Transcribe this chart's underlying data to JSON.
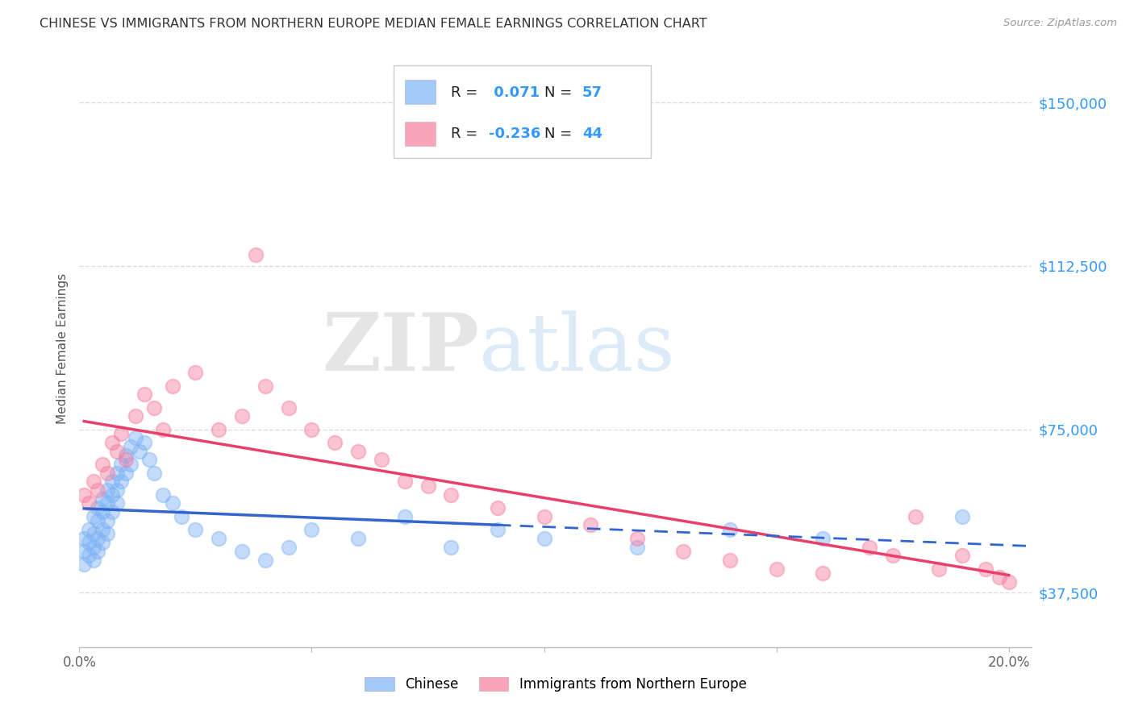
{
  "title": "CHINESE VS IMMIGRANTS FROM NORTHERN EUROPE MEDIAN FEMALE EARNINGS CORRELATION CHART",
  "source": "Source: ZipAtlas.com",
  "ylabel": "Median Female Earnings",
  "yticks": [
    37500,
    75000,
    112500,
    150000
  ],
  "ytick_labels": [
    "$37,500",
    "$75,000",
    "$112,500",
    "$150,000"
  ],
  "xlim": [
    0.0,
    0.205
  ],
  "ylim": [
    25000,
    162000
  ],
  "legend_chinese_R": "0.071",
  "legend_chinese_N": "57",
  "legend_northern_R": "-0.236",
  "legend_northern_N": "44",
  "chinese_color": "#7EB3F5",
  "northern_color": "#F87EA0",
  "chinese_line_color": "#3366CC",
  "northern_line_color": "#E8406A",
  "watermark_zip": "ZIP",
  "watermark_atlas": "atlas",
  "chinese_x": [
    0.001,
    0.001,
    0.001,
    0.002,
    0.002,
    0.002,
    0.003,
    0.003,
    0.003,
    0.003,
    0.004,
    0.004,
    0.004,
    0.004,
    0.005,
    0.005,
    0.005,
    0.005,
    0.006,
    0.006,
    0.006,
    0.006,
    0.007,
    0.007,
    0.007,
    0.008,
    0.008,
    0.008,
    0.009,
    0.009,
    0.01,
    0.01,
    0.011,
    0.011,
    0.012,
    0.013,
    0.014,
    0.015,
    0.016,
    0.018,
    0.02,
    0.022,
    0.025,
    0.03,
    0.035,
    0.04,
    0.045,
    0.05,
    0.06,
    0.07,
    0.08,
    0.09,
    0.1,
    0.12,
    0.14,
    0.16,
    0.19
  ],
  "chinese_y": [
    47000,
    50000,
    44000,
    52000,
    49000,
    46000,
    55000,
    51000,
    48000,
    45000,
    57000,
    54000,
    50000,
    47000,
    59000,
    56000,
    52000,
    49000,
    61000,
    58000,
    54000,
    51000,
    63000,
    60000,
    56000,
    65000,
    61000,
    58000,
    67000,
    63000,
    69000,
    65000,
    71000,
    67000,
    73000,
    70000,
    72000,
    68000,
    65000,
    60000,
    58000,
    55000,
    52000,
    50000,
    47000,
    45000,
    48000,
    52000,
    50000,
    55000,
    48000,
    52000,
    50000,
    48000,
    52000,
    50000,
    55000
  ],
  "northern_x": [
    0.001,
    0.002,
    0.003,
    0.004,
    0.005,
    0.006,
    0.007,
    0.008,
    0.009,
    0.01,
    0.012,
    0.014,
    0.016,
    0.018,
    0.02,
    0.025,
    0.03,
    0.035,
    0.038,
    0.04,
    0.045,
    0.05,
    0.055,
    0.06,
    0.065,
    0.07,
    0.075,
    0.08,
    0.09,
    0.1,
    0.11,
    0.12,
    0.13,
    0.14,
    0.15,
    0.16,
    0.17,
    0.175,
    0.18,
    0.185,
    0.19,
    0.195,
    0.198,
    0.2
  ],
  "northern_y": [
    60000,
    58000,
    63000,
    61000,
    67000,
    65000,
    72000,
    70000,
    74000,
    68000,
    78000,
    83000,
    80000,
    75000,
    85000,
    88000,
    75000,
    78000,
    115000,
    85000,
    80000,
    75000,
    72000,
    70000,
    68000,
    63000,
    62000,
    60000,
    57000,
    55000,
    53000,
    50000,
    47000,
    45000,
    43000,
    42000,
    48000,
    46000,
    55000,
    43000,
    46000,
    43000,
    41000,
    40000
  ],
  "background_color": "#ffffff",
  "grid_color": "#dddddd",
  "title_color": "#333333",
  "ytick_color": "#3399FF",
  "xtick_color": "#666666"
}
